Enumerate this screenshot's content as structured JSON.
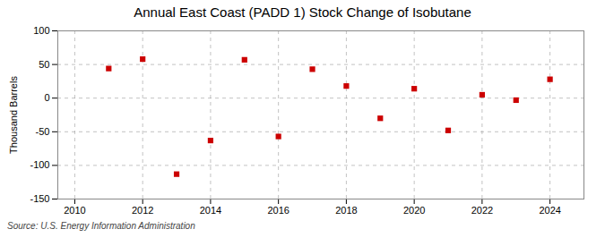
{
  "chart_data": {
    "type": "scatter",
    "title": "Annual East Coast (PADD 1) Stock Change of Isobutane",
    "ylabel": "Thousand Barrels",
    "source": "Source: U.S. Energy Information Administration",
    "x": [
      2011,
      2012,
      2013,
      2014,
      2015,
      2016,
      2017,
      2018,
      2019,
      2020,
      2021,
      2022,
      2023,
      2024
    ],
    "values": [
      44,
      58,
      -113,
      -63,
      57,
      -57,
      43,
      18,
      -30,
      14,
      -48,
      5,
      -3,
      28
    ],
    "color": "#cc0000",
    "marker": "square",
    "xlim": [
      2009.5,
      2025.0
    ],
    "ylim": [
      -150,
      100
    ],
    "xticks": [
      2010,
      2012,
      2014,
      2016,
      2018,
      2020,
      2022,
      2024
    ],
    "yticks": [
      -150,
      -100,
      -50,
      0,
      50,
      100
    ],
    "grid": true
  }
}
